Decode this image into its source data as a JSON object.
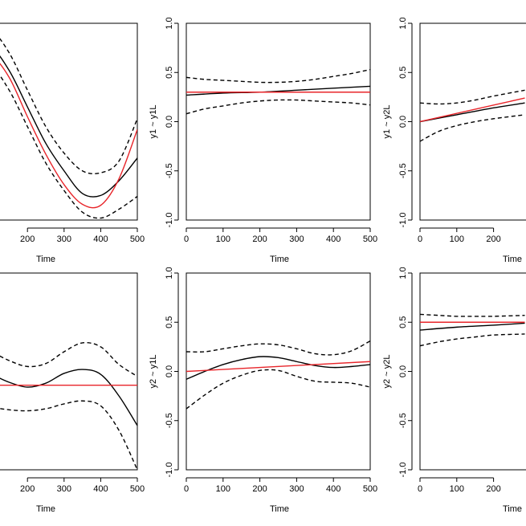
{
  "chart_data": [
    {
      "type": "line",
      "panel": "top-left",
      "xlabel": "Time",
      "ylabel": "",
      "xlim": [
        0,
        500
      ],
      "ylim": [
        -1.0,
        1.0
      ],
      "xticks": [
        "200",
        "300",
        "400",
        "500"
      ],
      "yticks": [],
      "series": [
        {
          "name": "estimate",
          "color": "#000000",
          "style": "solid",
          "x": [
            0,
            50,
            100,
            150,
            200,
            250,
            300,
            350,
            400,
            450,
            500
          ],
          "y": [
            0.5,
            0.75,
            0.76,
            0.52,
            0.15,
            -0.22,
            -0.5,
            -0.73,
            -0.75,
            -0.6,
            -0.37
          ]
        },
        {
          "name": "upper",
          "color": "#000000",
          "style": "dashed",
          "x": [
            0,
            50,
            100,
            150,
            200,
            250,
            300,
            350,
            400,
            450,
            500
          ],
          "y": [
            0.85,
            0.98,
            0.94,
            0.7,
            0.32,
            -0.05,
            -0.32,
            -0.5,
            -0.52,
            -0.4,
            0.03
          ]
        },
        {
          "name": "lower",
          "color": "#000000",
          "style": "dashed",
          "x": [
            0,
            50,
            100,
            150,
            200,
            250,
            300,
            350,
            400,
            450,
            500
          ],
          "y": [
            0.3,
            0.58,
            0.57,
            0.32,
            -0.05,
            -0.42,
            -0.7,
            -0.92,
            -0.98,
            -0.89,
            -0.76
          ]
        },
        {
          "name": "true",
          "color": "#e8252a",
          "style": "solid",
          "x": [
            0,
            50,
            100,
            150,
            200,
            250,
            300,
            350,
            400,
            450,
            500
          ],
          "y": [
            0.6,
            0.7,
            0.68,
            0.45,
            0.05,
            -0.33,
            -0.64,
            -0.84,
            -0.85,
            -0.58,
            -0.08
          ]
        }
      ]
    },
    {
      "type": "line",
      "panel": "top-middle",
      "xlabel": "Time",
      "ylabel": "y1 ~ y1L",
      "xlim": [
        0,
        500
      ],
      "ylim": [
        -1.0,
        1.0
      ],
      "xticks": [
        "0",
        "100",
        "200",
        "300",
        "400",
        "500"
      ],
      "yticks": [
        "-1.0",
        "-0.5",
        "0.0",
        "0.5",
        "1.0"
      ],
      "series": [
        {
          "name": "estimate",
          "color": "#000000",
          "style": "solid",
          "x": [
            0,
            100,
            200,
            300,
            400,
            500
          ],
          "y": [
            0.27,
            0.29,
            0.3,
            0.32,
            0.34,
            0.36
          ]
        },
        {
          "name": "upper",
          "color": "#000000",
          "style": "dashed",
          "x": [
            0,
            50,
            100,
            150,
            200,
            250,
            300,
            350,
            400,
            450,
            500
          ],
          "y": [
            0.45,
            0.43,
            0.42,
            0.41,
            0.4,
            0.4,
            0.41,
            0.43,
            0.46,
            0.49,
            0.53
          ]
        },
        {
          "name": "lower",
          "color": "#000000",
          "style": "dashed",
          "x": [
            0,
            50,
            100,
            150,
            200,
            250,
            300,
            350,
            400,
            450,
            500
          ],
          "y": [
            0.08,
            0.13,
            0.16,
            0.19,
            0.21,
            0.22,
            0.22,
            0.21,
            0.2,
            0.19,
            0.17
          ]
        },
        {
          "name": "true",
          "color": "#e8252a",
          "style": "solid",
          "x": [
            0,
            500
          ],
          "y": [
            0.3,
            0.3
          ]
        }
      ]
    },
    {
      "type": "line",
      "panel": "top-right",
      "xlabel": "Time",
      "ylabel": "y1 ~ y2L",
      "xlim": [
        0,
        500
      ],
      "ylim": [
        -1.0,
        1.0
      ],
      "xticks": [
        "0",
        "100",
        "200",
        "3"
      ],
      "yticks": [
        "-1.0",
        "-0.5",
        "0.0",
        "0.5",
        "1.0"
      ],
      "series": [
        {
          "name": "estimate",
          "color": "#000000",
          "style": "solid",
          "x": [
            0,
            100,
            200,
            285
          ],
          "y": [
            0.0,
            0.07,
            0.14,
            0.19
          ]
        },
        {
          "name": "upper",
          "color": "#000000",
          "style": "dashed",
          "x": [
            0,
            50,
            100,
            150,
            200,
            285
          ],
          "y": [
            0.19,
            0.18,
            0.19,
            0.22,
            0.26,
            0.32
          ]
        },
        {
          "name": "lower",
          "color": "#000000",
          "style": "dashed",
          "x": [
            0,
            50,
            100,
            150,
            200,
            285
          ],
          "y": [
            -0.2,
            -0.1,
            -0.04,
            0.0,
            0.03,
            0.07
          ]
        },
        {
          "name": "true",
          "color": "#e8252a",
          "style": "solid",
          "x": [
            0,
            285
          ],
          "y": [
            0.0,
            0.24
          ]
        }
      ]
    },
    {
      "type": "line",
      "panel": "bottom-left",
      "xlabel": "Time",
      "ylabel": "",
      "xlim": [
        0,
        500
      ],
      "ylim": [
        -1.0,
        1.0
      ],
      "xticks": [
        "200",
        "300",
        "400",
        "500"
      ],
      "yticks": [],
      "series": [
        {
          "name": "estimate",
          "color": "#000000",
          "style": "solid",
          "x": [
            0,
            50,
            100,
            150,
            200,
            250,
            300,
            350,
            400,
            450,
            500
          ],
          "y": [
            0.05,
            0.02,
            -0.03,
            -0.11,
            -0.16,
            -0.12,
            -0.02,
            0.02,
            -0.03,
            -0.25,
            -0.55
          ]
        },
        {
          "name": "upper",
          "color": "#000000",
          "style": "dashed",
          "x": [
            0,
            50,
            100,
            150,
            200,
            250,
            300,
            350,
            400,
            450,
            500
          ],
          "y": [
            0.3,
            0.25,
            0.2,
            0.11,
            0.05,
            0.08,
            0.2,
            0.29,
            0.25,
            0.07,
            -0.05
          ]
        },
        {
          "name": "lower",
          "color": "#000000",
          "style": "dashed",
          "x": [
            0,
            50,
            100,
            150,
            200,
            250,
            300,
            350,
            400,
            450,
            500
          ],
          "y": [
            -0.25,
            -0.3,
            -0.36,
            -0.39,
            -0.4,
            -0.38,
            -0.33,
            -0.3,
            -0.35,
            -0.6,
            -1.0
          ]
        },
        {
          "name": "true",
          "color": "#e8252a",
          "style": "solid",
          "x": [
            0,
            500
          ],
          "y": [
            -0.14,
            -0.14
          ]
        }
      ]
    },
    {
      "type": "line",
      "panel": "bottom-middle",
      "xlabel": "Time",
      "ylabel": "y2 ~ y1L",
      "xlim": [
        0,
        500
      ],
      "ylim": [
        -1.0,
        1.0
      ],
      "xticks": [
        "0",
        "100",
        "200",
        "300",
        "400",
        "500"
      ],
      "yticks": [
        "-1.0",
        "-0.5",
        "0.0",
        "0.5",
        "1.0"
      ],
      "series": [
        {
          "name": "estimate",
          "color": "#000000",
          "style": "solid",
          "x": [
            0,
            50,
            100,
            150,
            200,
            250,
            300,
            350,
            400,
            450,
            500
          ],
          "y": [
            -0.08,
            0.0,
            0.07,
            0.12,
            0.15,
            0.14,
            0.1,
            0.06,
            0.04,
            0.05,
            0.07
          ]
        },
        {
          "name": "upper",
          "color": "#000000",
          "style": "dashed",
          "x": [
            0,
            50,
            100,
            150,
            200,
            250,
            300,
            350,
            400,
            450,
            500
          ],
          "y": [
            0.2,
            0.2,
            0.23,
            0.26,
            0.28,
            0.27,
            0.23,
            0.18,
            0.17,
            0.21,
            0.31
          ]
        },
        {
          "name": "lower",
          "color": "#000000",
          "style": "dashed",
          "x": [
            0,
            50,
            100,
            150,
            200,
            250,
            300,
            350,
            400,
            450,
            500
          ],
          "y": [
            -0.38,
            -0.24,
            -0.12,
            -0.04,
            0.01,
            0.01,
            -0.05,
            -0.1,
            -0.11,
            -0.12,
            -0.16
          ]
        },
        {
          "name": "true",
          "color": "#e8252a",
          "style": "solid",
          "x": [
            0,
            500
          ],
          "y": [
            0.0,
            0.1
          ]
        }
      ]
    },
    {
      "type": "line",
      "panel": "bottom-right",
      "xlabel": "Time",
      "ylabel": "y2 ~ y2L",
      "xlim": [
        0,
        500
      ],
      "ylim": [
        -1.0,
        1.0
      ],
      "xticks": [
        "0",
        "100",
        "200",
        "3"
      ],
      "yticks": [
        "-1.0",
        "-0.5",
        "0.0",
        "0.5",
        "1.0"
      ],
      "series": [
        {
          "name": "estimate",
          "color": "#000000",
          "style": "solid",
          "x": [
            0,
            100,
            200,
            285
          ],
          "y": [
            0.42,
            0.45,
            0.47,
            0.49
          ]
        },
        {
          "name": "upper",
          "color": "#000000",
          "style": "dashed",
          "x": [
            0,
            50,
            100,
            150,
            200,
            285
          ],
          "y": [
            0.58,
            0.57,
            0.56,
            0.56,
            0.56,
            0.57
          ]
        },
        {
          "name": "lower",
          "color": "#000000",
          "style": "dashed",
          "x": [
            0,
            50,
            100,
            150,
            200,
            285
          ],
          "y": [
            0.26,
            0.3,
            0.33,
            0.35,
            0.37,
            0.38
          ]
        },
        {
          "name": "true",
          "color": "#e8252a",
          "style": "solid",
          "x": [
            0,
            285
          ],
          "y": [
            0.5,
            0.5
          ]
        }
      ]
    }
  ]
}
